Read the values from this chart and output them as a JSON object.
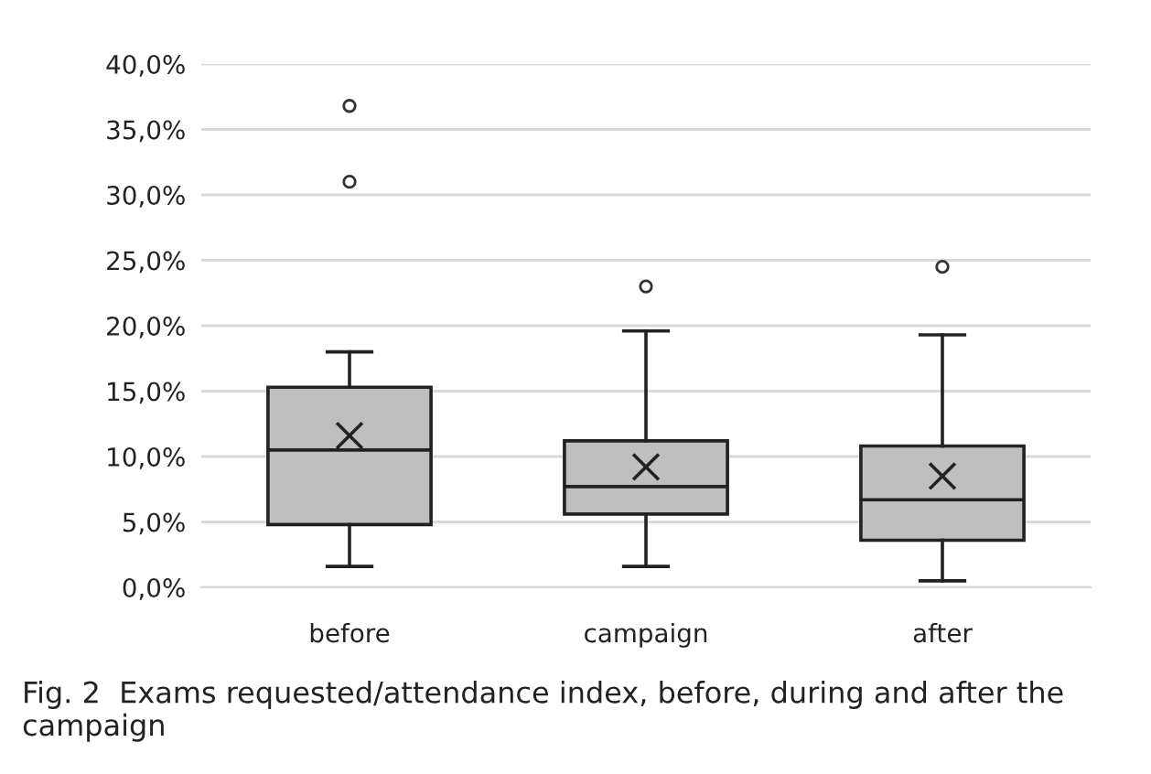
{
  "chart_data": {
    "type": "box",
    "categories": [
      "before",
      "campaign",
      "after"
    ],
    "boxes": [
      {
        "low": 1.6,
        "q1": 4.8,
        "median": 10.5,
        "q3": 15.3,
        "high": 18.0,
        "mean": 11.6,
        "outliers": [
          36.8,
          31.0
        ]
      },
      {
        "low": 1.6,
        "q1": 5.6,
        "median": 7.7,
        "q3": 11.2,
        "high": 19.6,
        "mean": 9.2,
        "outliers": [
          23.0
        ]
      },
      {
        "low": 0.5,
        "q1": 3.6,
        "median": 6.7,
        "q3": 10.8,
        "high": 19.3,
        "mean": 8.5,
        "outliers": [
          24.5
        ]
      }
    ],
    "color": "#bfbfbf",
    "ylim": [
      0,
      40
    ],
    "yticks": [
      {
        "value": 0,
        "label": "0,0%"
      },
      {
        "value": 5,
        "label": "5,0%"
      },
      {
        "value": 10,
        "label": "10,0%"
      },
      {
        "value": 15,
        "label": "15,0%"
      },
      {
        "value": 20,
        "label": "20,0%"
      },
      {
        "value": 25,
        "label": "25,0%"
      },
      {
        "value": 30,
        "label": "30,0%"
      },
      {
        "value": 35,
        "label": "35,0%"
      },
      {
        "value": 40,
        "label": "40,0%"
      }
    ],
    "grid": "y",
    "annotations": [
      "Fig. 2  Exams requested/attendance index, before, during and after the campaign"
    ]
  }
}
